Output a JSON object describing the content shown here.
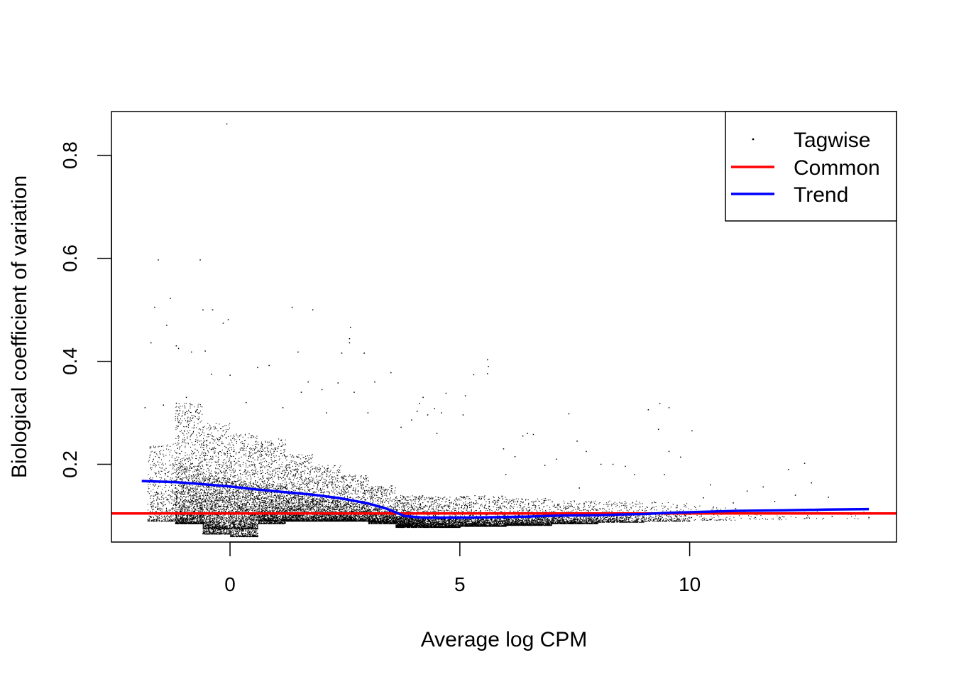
{
  "chart_data": {
    "type": "scatter",
    "xlabel": "Average log CPM",
    "ylabel": "Biological coefficient of variation",
    "xlim": [
      -2.58,
      14.5
    ],
    "ylim": [
      0.049,
      0.885
    ],
    "x_ticks": [
      0,
      5,
      10
    ],
    "y_ticks": [
      0.2,
      0.4,
      0.6,
      0.8
    ],
    "legend_position": "top-right",
    "colors": {
      "tagwise": "#000000",
      "common": "#ff0000",
      "trend": "#0000ff"
    },
    "legend": [
      {
        "label": "Tagwise",
        "style": "point"
      },
      {
        "label": "Common",
        "style": "line"
      },
      {
        "label": "Trend",
        "style": "line"
      }
    ],
    "series": [
      {
        "name": "Tagwise",
        "kind": "points",
        "points": [
          [
            -0.07,
            0.861
          ],
          [
            -1.56,
            0.597
          ],
          [
            -0.65,
            0.597
          ],
          [
            -1.3,
            0.522
          ],
          [
            -1.64,
            0.505
          ],
          [
            -0.59,
            0.5
          ],
          [
            -0.38,
            0.5
          ],
          [
            1.35,
            0.505
          ],
          [
            1.8,
            0.5
          ],
          [
            -0.04,
            0.481
          ],
          [
            -0.15,
            0.474
          ],
          [
            -1.38,
            0.47
          ],
          [
            -1.72,
            0.436
          ],
          [
            2.62,
            0.466
          ],
          [
            2.6,
            0.444
          ],
          [
            2.6,
            0.436
          ],
          [
            2.43,
            0.416
          ],
          [
            2.92,
            0.416
          ],
          [
            1.48,
            0.418
          ],
          [
            -1.17,
            0.43
          ],
          [
            -1.12,
            0.425
          ],
          [
            -0.84,
            0.418
          ],
          [
            -0.54,
            0.42
          ],
          [
            5.6,
            0.403
          ],
          [
            5.62,
            0.39
          ],
          [
            5.6,
            0.376
          ],
          [
            5.3,
            0.374
          ],
          [
            3.5,
            0.378
          ],
          [
            4.7,
            0.338
          ],
          [
            5.12,
            0.333
          ],
          [
            4.2,
            0.33
          ],
          [
            4.12,
            0.318
          ],
          [
            4.6,
            0.3
          ],
          [
            5.07,
            0.296
          ],
          [
            4.3,
            0.296
          ],
          [
            4.07,
            0.303
          ],
          [
            6.47,
            0.26
          ],
          [
            6.6,
            0.258
          ],
          [
            6.37,
            0.255
          ],
          [
            7.37,
            0.298
          ],
          [
            9.35,
            0.318
          ],
          [
            9.55,
            0.31
          ],
          [
            9.1,
            0.306
          ],
          [
            9.32,
            0.268
          ],
          [
            10.05,
            0.265
          ],
          [
            8.33,
            0.2
          ],
          [
            8.6,
            0.196
          ],
          [
            8.07,
            0.2
          ],
          [
            9.8,
            0.214
          ],
          [
            9.55,
            0.225
          ],
          [
            12.5,
            0.202
          ],
          [
            12.15,
            0.19
          ],
          [
            12.65,
            0.164
          ],
          [
            13.02,
            0.136
          ],
          [
            12.3,
            0.14
          ],
          [
            11.85,
            0.128
          ],
          [
            11.6,
            0.156
          ],
          [
            10.3,
            0.135
          ],
          [
            10.95,
            0.125
          ],
          [
            11.0,
            0.114
          ],
          [
            11.45,
            0.11
          ],
          [
            11.7,
            0.104
          ],
          [
            12.05,
            0.098
          ],
          [
            12.55,
            0.096
          ],
          [
            13.1,
            0.099
          ],
          [
            13.45,
            0.103
          ],
          [
            13.9,
            0.097
          ],
          [
            7.75,
            0.225
          ],
          [
            7.55,
            0.245
          ],
          [
            6.85,
            0.198
          ],
          [
            2.1,
            0.3
          ],
          [
            1.7,
            0.36
          ],
          [
            1.55,
            0.34
          ],
          [
            2.0,
            0.345
          ],
          [
            0.85,
            0.392
          ],
          [
            0.6,
            0.388
          ],
          [
            -0.4,
            0.375
          ],
          [
            0.0,
            0.373
          ],
          [
            3.0,
            0.3
          ],
          [
            3.15,
            0.36
          ],
          [
            2.35,
            0.358
          ],
          [
            2.7,
            0.34
          ],
          [
            3.72,
            0.272
          ],
          [
            3.95,
            0.286
          ],
          [
            4.45,
            0.308
          ],
          [
            4.5,
            0.26
          ],
          [
            5.95,
            0.23
          ],
          [
            6.2,
            0.215
          ],
          [
            7.1,
            0.21
          ],
          [
            8.8,
            0.18
          ],
          [
            9.45,
            0.18
          ],
          [
            10.45,
            0.16
          ],
          [
            11.25,
            0.148
          ],
          [
            7.6,
            0.154
          ],
          [
            6.0,
            0.18
          ],
          [
            1.15,
            0.31
          ],
          [
            0.35,
            0.32
          ],
          [
            -0.95,
            0.33
          ],
          [
            -1.45,
            0.315
          ],
          [
            -1.85,
            0.31
          ]
        ],
        "clouds": [
          {
            "x": [
              -1.8,
              -1.2
            ],
            "y_low": 0.09,
            "y_high": 0.24,
            "count": 500
          },
          {
            "x": [
              -1.2,
              -0.6
            ],
            "y_low": 0.085,
            "y_high": 0.32,
            "count": 1000
          },
          {
            "x": [
              -1.2,
              -0.6
            ],
            "y_low": 0.085,
            "y_high": 0.2,
            "count": 700
          },
          {
            "x": [
              -0.6,
              0.0
            ],
            "y_low": 0.065,
            "y_high": 0.28,
            "count": 1000
          },
          {
            "x": [
              -0.6,
              0.0
            ],
            "y_low": 0.075,
            "y_high": 0.18,
            "count": 800
          },
          {
            "x": [
              0.0,
              0.6
            ],
            "y_low": 0.06,
            "y_high": 0.26,
            "count": 1000
          },
          {
            "x": [
              0.0,
              0.6
            ],
            "y_low": 0.075,
            "y_high": 0.17,
            "count": 800
          },
          {
            "x": [
              0.6,
              1.2
            ],
            "y_low": 0.085,
            "y_high": 0.25,
            "count": 900
          },
          {
            "x": [
              0.6,
              1.2
            ],
            "y_low": 0.09,
            "y_high": 0.16,
            "count": 700
          },
          {
            "x": [
              1.2,
              1.8
            ],
            "y_low": 0.09,
            "y_high": 0.22,
            "count": 800
          },
          {
            "x": [
              1.2,
              1.8
            ],
            "y_low": 0.09,
            "y_high": 0.145,
            "count": 600
          },
          {
            "x": [
              1.8,
              2.4
            ],
            "y_low": 0.09,
            "y_high": 0.2,
            "count": 700
          },
          {
            "x": [
              1.8,
              2.4
            ],
            "y_low": 0.09,
            "y_high": 0.135,
            "count": 600
          },
          {
            "x": [
              2.4,
              3.0
            ],
            "y_low": 0.09,
            "y_high": 0.18,
            "count": 650
          },
          {
            "x": [
              2.4,
              3.0
            ],
            "y_low": 0.09,
            "y_high": 0.125,
            "count": 550
          },
          {
            "x": [
              3.0,
              3.6
            ],
            "y_low": 0.085,
            "y_high": 0.16,
            "count": 600
          },
          {
            "x": [
              3.0,
              3.6
            ],
            "y_low": 0.088,
            "y_high": 0.115,
            "count": 600
          },
          {
            "x": [
              3.6,
              4.2
            ],
            "y_low": 0.078,
            "y_high": 0.14,
            "count": 600
          },
          {
            "x": [
              3.6,
              4.2
            ],
            "y_low": 0.08,
            "y_high": 0.1,
            "count": 800
          },
          {
            "x": [
              4.2,
              5.0
            ],
            "y_low": 0.078,
            "y_high": 0.14,
            "count": 600
          },
          {
            "x": [
              4.2,
              5.0
            ],
            "y_low": 0.078,
            "y_high": 0.097,
            "count": 900
          },
          {
            "x": [
              5.0,
              6.0
            ],
            "y_low": 0.08,
            "y_high": 0.14,
            "count": 600
          },
          {
            "x": [
              5.0,
              6.0
            ],
            "y_low": 0.08,
            "y_high": 0.098,
            "count": 900
          },
          {
            "x": [
              6.0,
              7.0
            ],
            "y_low": 0.082,
            "y_high": 0.135,
            "count": 500
          },
          {
            "x": [
              6.0,
              7.0
            ],
            "y_low": 0.082,
            "y_high": 0.099,
            "count": 700
          },
          {
            "x": [
              7.0,
              8.0
            ],
            "y_low": 0.085,
            "y_high": 0.13,
            "count": 400
          },
          {
            "x": [
              7.0,
              8.0
            ],
            "y_low": 0.085,
            "y_high": 0.1,
            "count": 500
          },
          {
            "x": [
              8.0,
              9.0
            ],
            "y_low": 0.088,
            "y_high": 0.13,
            "count": 250
          },
          {
            "x": [
              8.0,
              9.0
            ],
            "y_low": 0.088,
            "y_high": 0.102,
            "count": 300
          },
          {
            "x": [
              9.0,
              10.0
            ],
            "y_low": 0.09,
            "y_high": 0.13,
            "count": 150
          },
          {
            "x": [
              9.0,
              10.0
            ],
            "y_low": 0.09,
            "y_high": 0.104,
            "count": 150
          },
          {
            "x": [
              10.0,
              11.0
            ],
            "y_low": 0.092,
            "y_high": 0.12,
            "count": 70
          },
          {
            "x": [
              11.0,
              12.0
            ],
            "y_low": 0.093,
            "y_high": 0.115,
            "count": 35
          },
          {
            "x": [
              12.0,
              13.0
            ],
            "y_low": 0.094,
            "y_high": 0.11,
            "count": 15
          },
          {
            "x": [
              13.0,
              13.9
            ],
            "y_low": 0.095,
            "y_high": 0.11,
            "count": 8
          }
        ]
      },
      {
        "name": "Common",
        "kind": "hline",
        "y": 0.1045
      },
      {
        "name": "Trend",
        "kind": "line",
        "x": [
          -1.92,
          -1.2,
          -0.6,
          0.0,
          0.6,
          1.2,
          1.8,
          2.4,
          3.0,
          3.4,
          3.8,
          4.2,
          4.6,
          5.0,
          5.5,
          6.0,
          6.5,
          7.0,
          7.5,
          8.0,
          8.5,
          9.0,
          9.5,
          10.0,
          11.0,
          12.0,
          13.0,
          13.9
        ],
        "y": [
          0.1675,
          0.1655,
          0.1615,
          0.157,
          0.151,
          0.146,
          0.141,
          0.134,
          0.124,
          0.114,
          0.0995,
          0.0965,
          0.0965,
          0.0965,
          0.097,
          0.0975,
          0.0985,
          0.1,
          0.1008,
          0.1012,
          0.1025,
          0.1035,
          0.1055,
          0.107,
          0.1095,
          0.1105,
          0.112,
          0.113
        ]
      }
    ]
  }
}
